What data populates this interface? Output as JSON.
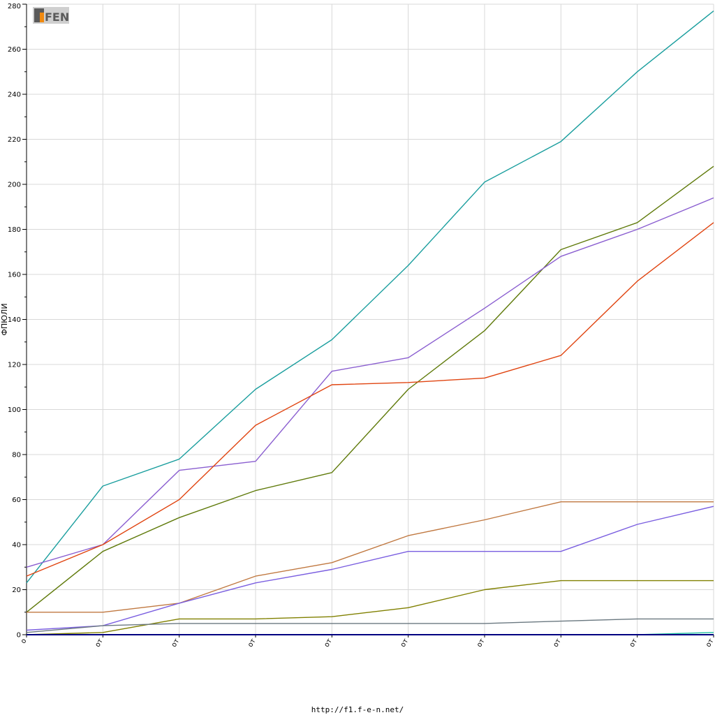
{
  "footer": {
    "url": "http://f1.f-e-n.net/"
  },
  "logo": {
    "text": "FEN"
  },
  "chart_data": {
    "type": "line",
    "ylabel": "ФПЮЛИ",
    "ylim": [
      0,
      280
    ],
    "ytick_step": 20,
    "grid": true,
    "x_tick_labels": [
      "о",
      "от",
      "от",
      "от",
      "от",
      "от",
      "от",
      "от",
      "от",
      "от"
    ],
    "x": [
      0,
      1,
      2,
      3,
      4,
      5,
      6,
      7,
      8,
      9
    ],
    "series": [
      {
        "color": "#1a9e9e",
        "values": [
          23,
          66,
          78,
          109,
          131,
          164,
          201,
          219,
          250,
          277
        ]
      },
      {
        "color": "#5f7a0a",
        "values": [
          10,
          37,
          52,
          64,
          72,
          109,
          135,
          171,
          183,
          208
        ]
      },
      {
        "color": "#8a5ed0",
        "values": [
          30,
          40,
          73,
          77,
          117,
          123,
          145,
          168,
          180,
          194
        ]
      },
      {
        "color": "#e04410",
        "values": [
          26,
          40,
          60,
          93,
          111,
          112,
          114,
          124,
          157,
          183
        ]
      },
      {
        "color": "#c07840",
        "values": [
          10,
          10,
          14,
          26,
          32,
          44,
          51,
          59,
          59,
          59
        ]
      },
      {
        "color": "#7a5ee0",
        "values": [
          2,
          4,
          14,
          23,
          29,
          37,
          37,
          37,
          49,
          57
        ]
      },
      {
        "color": "#808000",
        "values": [
          0,
          1,
          7,
          7,
          8,
          12,
          20,
          24,
          24,
          24
        ]
      },
      {
        "color": "#6a7880",
        "values": [
          1,
          4,
          5,
          5,
          5,
          5,
          5,
          6,
          7,
          7
        ]
      },
      {
        "color": "#20c0a0",
        "values": [
          0,
          0,
          0,
          0,
          0,
          0,
          0,
          0,
          0,
          1
        ]
      },
      {
        "color": "#000080",
        "values": [
          0,
          0,
          0,
          0,
          0,
          0,
          0,
          0,
          0,
          0
        ]
      }
    ]
  }
}
